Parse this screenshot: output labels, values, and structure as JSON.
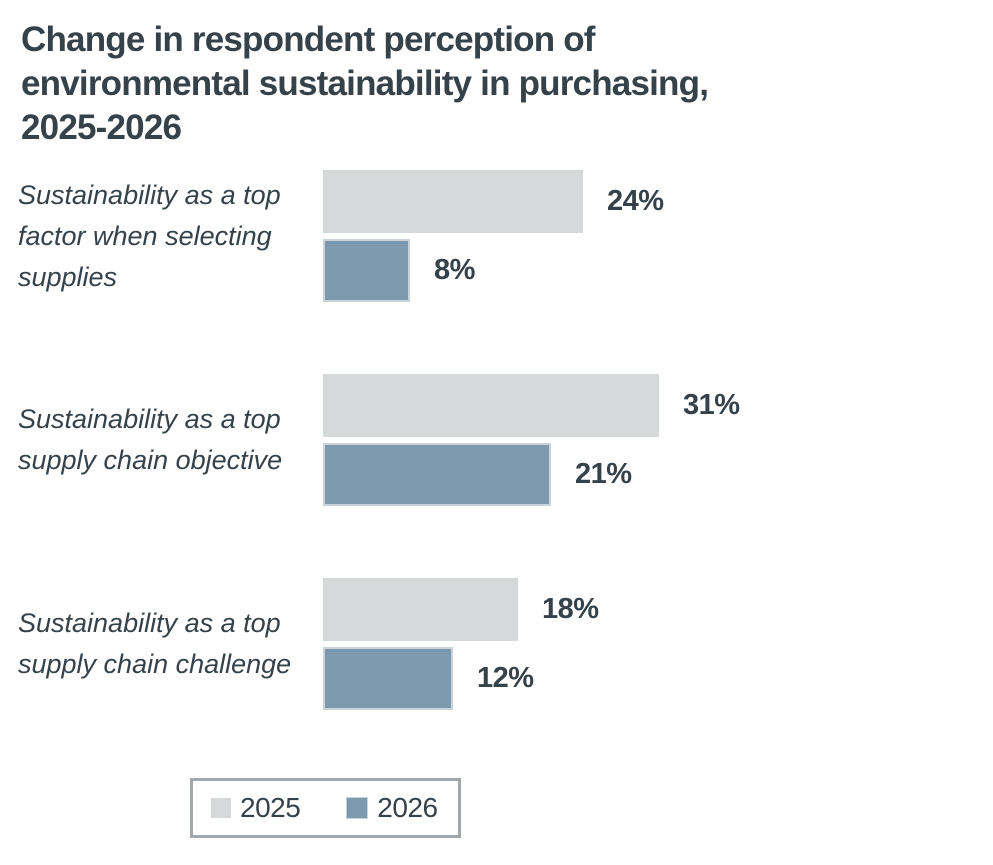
{
  "header": {
    "lines": [
      "Change in respondent perception of",
      "environmental sustainability in purchasing,",
      "2025-2026"
    ]
  },
  "colors": {
    "text": "#36424a",
    "background": "#ffffff",
    "bar_2025": "#d6d9da",
    "bar_2026": "#7d99ae",
    "bar_2026_border": "#c9d3d9",
    "legend_border": "#a5a8ab"
  },
  "chart_data": {
    "type": "bar",
    "orientation": "horizontal",
    "title": "Change in respondent perception of environmental sustainability in purchasing, 2025-2026",
    "categories": [
      "Sustainability as a top factor when selecting supplies",
      "Sustainability as a top supply chain objective",
      "Sustainability as a top supply chain challenge"
    ],
    "series": [
      {
        "name": "2025",
        "color": "#d6d9da",
        "border_color": "",
        "values": [
          24,
          31,
          18
        ]
      },
      {
        "name": "2026",
        "color": "#7d99ae",
        "border_color": "#c9d3d9",
        "values": [
          8,
          21,
          12
        ]
      }
    ],
    "value_suffix": "%",
    "xlim": [
      0,
      60
    ],
    "grid": false,
    "axes_visible": false,
    "legend": {
      "position": "bottom",
      "items": [
        "2025",
        "2026"
      ]
    }
  }
}
